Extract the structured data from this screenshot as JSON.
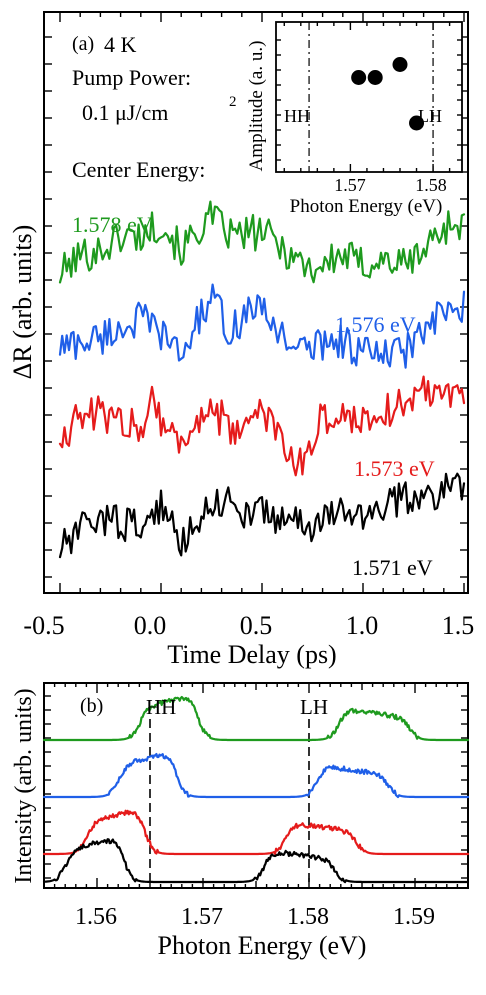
{
  "chart_data": [
    {
      "panel": "(a)",
      "type": "line",
      "xlabel": "Time Delay (ps)",
      "ylabel": "ΔR (arb. units)",
      "xlim": [
        -0.5,
        1.5
      ],
      "xticks": [
        "-0.5",
        "0.0",
        "0.5",
        "1.0",
        "1.5"
      ],
      "yticks_labelled": false,
      "grid": false,
      "annotations": {
        "temperature": "4 K",
        "pump_label": "Pump Power:",
        "pump_value": "0.1 μJ/cm",
        "pump_exponent": "2",
        "center_label": "Center Energy:"
      },
      "series": [
        {
          "name": "1.578 eV",
          "color": "#1e9a1e",
          "offset": 3,
          "key_times": [
            -0.5,
            -0.4,
            -0.3,
            -0.2,
            -0.1,
            0.0,
            0.1,
            0.2,
            0.25,
            0.35,
            0.5,
            0.65,
            0.75,
            0.9,
            1.0,
            1.1,
            1.2,
            1.3,
            1.4,
            1.5
          ],
          "key_levels": [
            0.25,
            0.45,
            0.5,
            0.65,
            0.65,
            0.8,
            0.5,
            0.75,
            0.85,
            0.65,
            0.7,
            0.45,
            0.3,
            0.45,
            0.35,
            0.4,
            0.35,
            0.5,
            0.75,
            0.8
          ]
        },
        {
          "name": "1.576 eV",
          "color": "#1f5fe8",
          "offset": 2,
          "key_times": [
            -0.5,
            -0.4,
            -0.3,
            -0.2,
            -0.1,
            0.0,
            0.1,
            0.2,
            0.25,
            0.35,
            0.45,
            0.5,
            0.6,
            0.7,
            0.85,
            1.0,
            1.1,
            1.2,
            1.3,
            1.4,
            1.5
          ],
          "key_levels": [
            0.4,
            0.45,
            0.5,
            0.6,
            0.7,
            0.55,
            0.3,
            0.75,
            0.9,
            0.55,
            0.85,
            0.75,
            0.55,
            0.35,
            0.5,
            0.35,
            0.3,
            0.35,
            0.55,
            0.75,
            0.8
          ]
        },
        {
          "name": "1.573 eV",
          "color": "#e51b1b",
          "offset": 1,
          "key_times": [
            -0.5,
            -0.4,
            -0.3,
            -0.2,
            -0.1,
            -0.05,
            0.0,
            0.1,
            0.2,
            0.3,
            0.35,
            0.45,
            0.55,
            0.65,
            0.7,
            0.8,
            0.9,
            1.0,
            1.1,
            1.2,
            1.3,
            1.4,
            1.5
          ],
          "key_levels": [
            0.35,
            0.55,
            0.6,
            0.5,
            0.45,
            0.8,
            0.55,
            0.25,
            0.6,
            0.55,
            0.3,
            0.65,
            0.5,
            0.05,
            0.1,
            0.55,
            0.55,
            0.55,
            0.6,
            0.7,
            0.85,
            0.85,
            0.8
          ]
        },
        {
          "name": "1.571 eV",
          "color": "#000000",
          "offset": 0,
          "key_times": [
            -0.5,
            -0.4,
            -0.3,
            -0.2,
            -0.1,
            0.0,
            0.1,
            0.2,
            0.3,
            0.4,
            0.5,
            0.6,
            0.7,
            0.8,
            0.9,
            1.0,
            1.1,
            1.2,
            1.3,
            1.4,
            1.5
          ],
          "key_levels": [
            0.1,
            0.3,
            0.45,
            0.4,
            0.35,
            0.55,
            0.2,
            0.5,
            0.65,
            0.5,
            0.5,
            0.45,
            0.35,
            0.4,
            0.5,
            0.5,
            0.55,
            0.65,
            0.65,
            0.75,
            0.8
          ]
        }
      ],
      "inset": {
        "type": "scatter",
        "xlabel": "Photon Energy (eV)",
        "ylabel": "Amplitude (a. u.)",
        "xlim": [
          1.561,
          1.5835
        ],
        "xticks": [
          "1.57",
          "1.58"
        ],
        "ylim": [
          0,
          1
        ],
        "guides": [
          {
            "label": "HH",
            "x": 1.565
          },
          {
            "label": "LH",
            "x": 1.58
          }
        ],
        "points": [
          {
            "x": 1.571,
            "y": 0.65
          },
          {
            "x": 1.573,
            "y": 0.65
          },
          {
            "x": 1.576,
            "y": 0.75
          },
          {
            "x": 1.578,
            "y": 0.3
          }
        ]
      }
    },
    {
      "panel": "(b)",
      "type": "line",
      "xlabel": "Photon Energy (eV)",
      "ylabel": "Intensity (arb. units)",
      "xlim": [
        1.555,
        1.595
      ],
      "xticks": [
        "1.56",
        "1.57",
        "1.58",
        "1.59"
      ],
      "yticks_labelled": false,
      "guides": [
        {
          "label": "HH",
          "x": 1.565
        },
        {
          "label": "LH",
          "x": 1.58
        }
      ],
      "series": [
        {
          "name": "1.578 eV",
          "color": "#1e9a1e",
          "offset": 3,
          "center": 1.5775
        },
        {
          "name": "1.576 eV",
          "color": "#1f5fe8",
          "offset": 2,
          "center": 1.5755
        },
        {
          "name": "1.573 eV",
          "color": "#e51b1b",
          "offset": 1,
          "center": 1.5725
        },
        {
          "name": "1.571 eV",
          "color": "#000000",
          "offset": 0,
          "center": 1.5705
        }
      ]
    }
  ]
}
